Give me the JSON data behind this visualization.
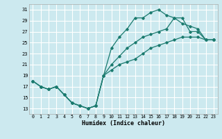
{
  "xlabel": "Humidex (Indice chaleur)",
  "bg_color": "#cce9ef",
  "grid_color": "#ffffff",
  "line_color": "#1a7a6e",
  "hours": [
    0,
    1,
    2,
    3,
    4,
    5,
    6,
    7,
    8,
    9,
    10,
    11,
    12,
    13,
    14,
    15,
    16,
    17,
    18,
    19,
    20,
    21,
    22,
    23
  ],
  "line1": [
    18,
    17,
    16.5,
    17,
    15.5,
    14,
    13.5,
    13,
    13.5,
    19,
    24,
    26,
    27.5,
    29.5,
    29.5,
    30.5,
    31,
    30,
    29.5,
    29.5,
    27,
    27,
    25.5,
    25.5
  ],
  "line2": [
    18,
    17,
    16.5,
    17,
    15.5,
    14,
    13.5,
    13,
    13.5,
    19,
    21,
    22.5,
    24,
    25,
    26,
    26.5,
    27,
    27.5,
    29.5,
    28.5,
    28,
    27.5,
    25.5,
    25.5
  ],
  "line3": [
    18,
    17,
    16.5,
    17,
    15.5,
    14,
    13.5,
    13,
    13.5,
    19,
    20,
    21,
    21.5,
    22,
    23,
    24,
    24.5,
    25,
    25.5,
    26,
    26,
    26,
    25.5,
    25.5
  ],
  "ylim": [
    12,
    32
  ],
  "yticks": [
    13,
    15,
    17,
    19,
    21,
    23,
    25,
    27,
    29,
    31
  ],
  "xticks": [
    0,
    1,
    2,
    3,
    4,
    5,
    6,
    7,
    8,
    9,
    10,
    11,
    12,
    13,
    14,
    15,
    16,
    17,
    18,
    19,
    20,
    21,
    22,
    23
  ]
}
